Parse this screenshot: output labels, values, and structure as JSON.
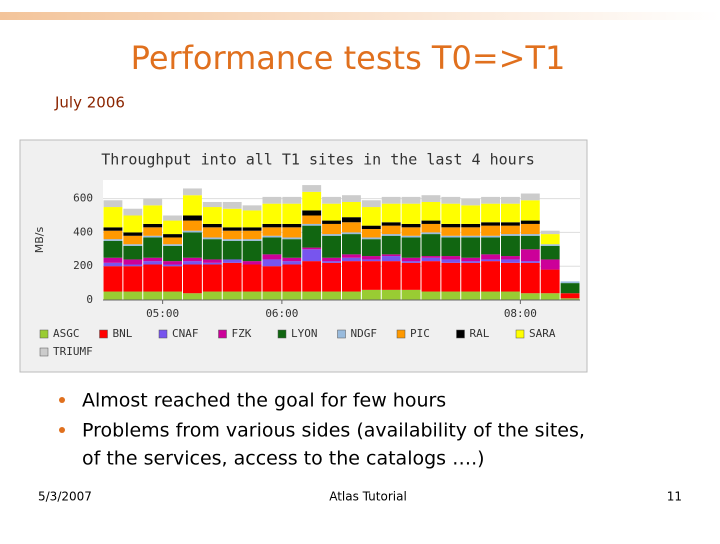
{
  "slide": {
    "title": "Performance tests T0=>T1",
    "subtitle": "July 2006",
    "bullets": [
      "Almost reached the goal for few hours",
      "Problems from various sides (availability of the sites,",
      "of the services, access to the catalogs ….)"
    ],
    "footer": {
      "date": "5/3/2007",
      "center": "Atlas Tutorial",
      "page": "11"
    }
  },
  "chart_data": {
    "type": "stacked-bar",
    "title": "Throughput into all T1 sites in the last 4 hours",
    "y_label": "MB/s",
    "categories": [
      null,
      null,
      null,
      "05:00",
      null,
      null,
      null,
      null,
      null,
      "06:00",
      null,
      null,
      null,
      null,
      null,
      null,
      null,
      null,
      null,
      null,
      null,
      "08:00",
      null,
      null
    ],
    "ylim": [
      0,
      710
    ],
    "yticks": [
      0,
      200,
      400,
      600
    ],
    "grid": true,
    "series": [
      {
        "name": "ASGC",
        "color": "#99cc33",
        "values": [
          50,
          50,
          50,
          50,
          40,
          50,
          50,
          50,
          50,
          50,
          50,
          50,
          50,
          60,
          60,
          60,
          50,
          50,
          50,
          50,
          50,
          40,
          40,
          10
        ]
      },
      {
        "name": "BNL",
        "color": "#ff0000",
        "values": [
          150,
          150,
          160,
          150,
          170,
          160,
          170,
          160,
          150,
          160,
          180,
          170,
          180,
          170,
          170,
          160,
          180,
          170,
          170,
          180,
          170,
          180,
          140,
          30
        ]
      },
      {
        "name": "CNAF",
        "color": "#7755ee",
        "values": [
          20,
          10,
          20,
          10,
          20,
          10,
          20,
          0,
          40,
          20,
          70,
          10,
          20,
          10,
          30,
          10,
          20,
          20,
          10,
          10,
          20,
          10,
          0,
          0
        ]
      },
      {
        "name": "FZK",
        "color": "#cc0099",
        "values": [
          30,
          30,
          20,
          20,
          20,
          20,
          0,
          20,
          30,
          20,
          10,
          20,
          20,
          20,
          10,
          20,
          10,
          20,
          20,
          30,
          20,
          70,
          60,
          0
        ]
      },
      {
        "name": "LYON",
        "color": "#116611",
        "values": [
          100,
          80,
          120,
          90,
          150,
          120,
          110,
          120,
          100,
          110,
          130,
          130,
          120,
          100,
          110,
          120,
          130,
          110,
          120,
          100,
          120,
          80,
          80,
          60
        ]
      },
      {
        "name": "NDGF",
        "color": "#99bbdd",
        "values": [
          10,
          10,
          10,
          10,
          10,
          10,
          10,
          10,
          10,
          10,
          10,
          10,
          10,
          10,
          10,
          10,
          10,
          10,
          10,
          10,
          10,
          10,
          10,
          10
        ]
      },
      {
        "name": "PIC",
        "color": "#ff9900",
        "values": [
          50,
          50,
          50,
          40,
          60,
          60,
          50,
          50,
          50,
          60,
          50,
          60,
          60,
          50,
          50,
          50,
          50,
          50,
          50,
          60,
          50,
          60,
          0,
          0
        ]
      },
      {
        "name": "RAL",
        "color": "#000000",
        "values": [
          20,
          20,
          20,
          20,
          30,
          20,
          20,
          20,
          20,
          20,
          30,
          20,
          30,
          20,
          20,
          20,
          20,
          20,
          20,
          20,
          20,
          20,
          0,
          0
        ]
      },
      {
        "name": "SARA",
        "color": "#ffff00",
        "values": [
          120,
          100,
          110,
          80,
          120,
          100,
          110,
          100,
          120,
          120,
          110,
          100,
          90,
          110,
          110,
          120,
          110,
          120,
          110,
          110,
          110,
          120,
          60,
          0
        ]
      },
      {
        "name": "TRIUMF",
        "color": "#cccccc",
        "values": [
          40,
          40,
          40,
          30,
          40,
          30,
          40,
          30,
          40,
          40,
          40,
          40,
          40,
          40,
          40,
          40,
          40,
          40,
          40,
          40,
          40,
          40,
          20,
          0
        ]
      }
    ]
  }
}
